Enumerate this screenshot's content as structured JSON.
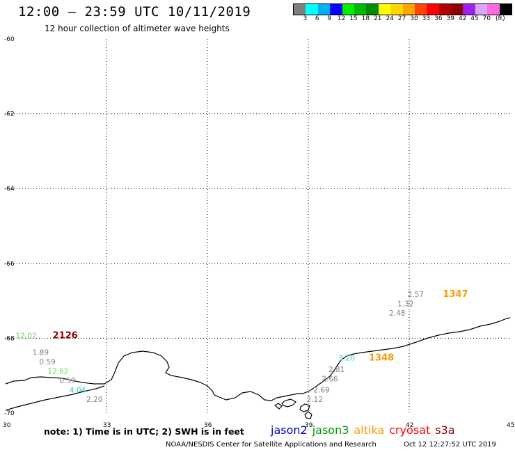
{
  "header": {
    "title": "12:00 – 23:59 UTC 10/11/2019",
    "subtitle": "12 hour collection of altimeter wave heights"
  },
  "colorbar": {
    "colors": [
      "#7f7f7f",
      "#00ffff",
      "#00b2ee",
      "#0000ff",
      "#00ee00",
      "#00b800",
      "#008b00",
      "#ffff00",
      "#ffd700",
      "#ffa500",
      "#ff4500",
      "#ff0000",
      "#b20000",
      "#8b0000",
      "#a020f0",
      "#d8a8f8",
      "#ff69e1",
      "#000000"
    ],
    "labels": [
      "3",
      "6",
      "9",
      "12",
      "15",
      "18",
      "21",
      "24",
      "27",
      "30",
      "33",
      "36",
      "39",
      "42",
      "45",
      "70",
      "(ft)"
    ]
  },
  "axes": {
    "lon_ticks": [
      "30",
      "33",
      "36",
      "39",
      "42",
      "45"
    ],
    "lat_ticks": [
      "-60",
      "-62",
      "-64",
      "-66",
      "-68",
      "-70"
    ]
  },
  "observations": [
    {
      "text": "2.57",
      "color": "#808080",
      "lon": 41.95,
      "lat": -66.9
    },
    {
      "text": "1347",
      "color": "#ff9900",
      "lon": 43.0,
      "lat": -66.9,
      "bold": true
    },
    {
      "text": "1.32",
      "color": "#808080",
      "lon": 41.65,
      "lat": -67.15
    },
    {
      "text": "2.48",
      "color": "#808080",
      "lon": 41.4,
      "lat": -67.4
    },
    {
      "text": "12.02",
      "color": "#66dd55",
      "lon": 30.3,
      "lat": -68.0
    },
    {
      "text": "2126",
      "color": "#8b0000",
      "lon": 31.4,
      "lat": -68.0,
      "bold": true
    },
    {
      "text": "1.89",
      "color": "#808080",
      "lon": 30.8,
      "lat": -68.45
    },
    {
      "text": "0.59",
      "color": "#808080",
      "lon": 31.0,
      "lat": -68.7
    },
    {
      "text": "12.62",
      "color": "#66dd55",
      "lon": 31.25,
      "lat": -68.95
    },
    {
      "text": "0.59",
      "color": "#808080",
      "lon": 31.6,
      "lat": -69.2
    },
    {
      "text": "4.04",
      "color": "#33cccc",
      "lon": 31.9,
      "lat": -69.45
    },
    {
      "text": "2.20",
      "color": "#808080",
      "lon": 32.4,
      "lat": -69.7
    },
    {
      "text": "3.20",
      "color": "#33cccc",
      "lon": 39.9,
      "lat": -68.6
    },
    {
      "text": "1348",
      "color": "#ff9900",
      "lon": 40.8,
      "lat": -68.6,
      "bold": true
    },
    {
      "text": "2.81",
      "color": "#808080",
      "lon": 39.6,
      "lat": -68.9
    },
    {
      "text": "2.66",
      "color": "#808080",
      "lon": 39.4,
      "lat": -69.15
    },
    {
      "text": "2.69",
      "color": "#808080",
      "lon": 39.15,
      "lat": -69.45
    },
    {
      "text": "2.12",
      "color": "#808080",
      "lon": 38.95,
      "lat": -69.7
    }
  ],
  "footer": {
    "note": "note: 1) Time is in UTC; 2) SWH is in feet",
    "satellites": [
      {
        "name": "jason2",
        "color": "#0000cc"
      },
      {
        "name": "jason3",
        "color": "#009900"
      },
      {
        "name": "altika",
        "color": "#ff9900"
      },
      {
        "name": "cryosat",
        "color": "#ff0000"
      },
      {
        "name": "s3a",
        "color": "#8b0000"
      }
    ],
    "credit": "NOAA/NESDIS Center for Satellite Applications and Research",
    "timestamp": "Oct 12 12:27:52 UTC 2019"
  }
}
